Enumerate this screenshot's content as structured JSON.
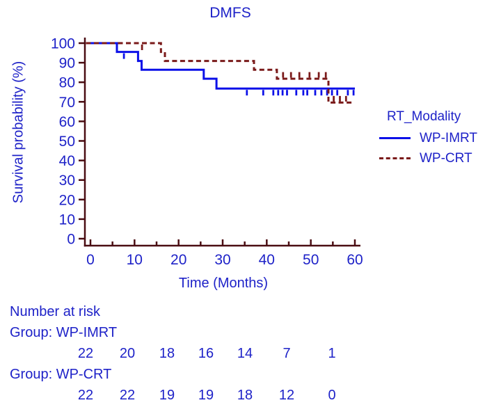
{
  "title": "DMFS",
  "legend": {
    "title": "RT_Modality",
    "items": [
      {
        "label": "WP-IMRT",
        "line": "solid",
        "color": "#0c10e8"
      },
      {
        "label": "WP-CRT",
        "line": "dashed",
        "color": "#7a1a1a"
      }
    ]
  },
  "chart_data": {
    "type": "line",
    "subtype": "kaplan-meier-step",
    "title": "DMFS",
    "xlabel": "Time (Months)",
    "ylabel": "Survival probability (%)",
    "xlim": [
      0,
      60
    ],
    "ylim": [
      0,
      100
    ],
    "xticks": [
      0,
      10,
      20,
      30,
      40,
      50,
      60
    ],
    "xticks_minor": [
      5,
      15,
      25,
      35,
      45,
      55
    ],
    "yticks": [
      0,
      10,
      20,
      30,
      40,
      50,
      60,
      70,
      80,
      90,
      100
    ],
    "grid": false,
    "legend_position": "right",
    "series": [
      {
        "name": "WP-IMRT",
        "color": "#0c10e8",
        "dash": "solid",
        "censor_dir": "down",
        "steps": [
          [
            0,
            100
          ],
          [
            6,
            100
          ],
          [
            6,
            95.5
          ],
          [
            10.8,
            95.5
          ],
          [
            10.8,
            90.9
          ],
          [
            11.6,
            90.9
          ],
          [
            11.6,
            86.4
          ],
          [
            25.7,
            86.4
          ],
          [
            25.7,
            81.8
          ],
          [
            28.6,
            81.8
          ],
          [
            28.6,
            76.8
          ],
          [
            60,
            76.8
          ]
        ],
        "censors": [
          [
            7.6,
            95.5
          ],
          [
            35.5,
            76.8
          ],
          [
            39.2,
            76.8
          ],
          [
            41.5,
            76.8
          ],
          [
            42.6,
            76.8
          ],
          [
            43.6,
            76.8
          ],
          [
            44.6,
            76.8
          ],
          [
            46.7,
            76.8
          ],
          [
            48.3,
            76.8
          ],
          [
            49.2,
            76.8
          ],
          [
            51,
            76.8
          ],
          [
            52.4,
            76.8
          ],
          [
            53.7,
            76.8
          ],
          [
            54.8,
            76.8
          ],
          [
            56,
            76.8
          ],
          [
            58.4,
            76.8
          ],
          [
            59.7,
            76.8
          ]
        ]
      },
      {
        "name": "WP-CRT",
        "color": "#7a1a1a",
        "dash": "dashed",
        "censor_dir": "up",
        "steps": [
          [
            0,
            100
          ],
          [
            16,
            100
          ],
          [
            16,
            95.5
          ],
          [
            16.9,
            95.5
          ],
          [
            16.9,
            90.9
          ],
          [
            37.1,
            90.9
          ],
          [
            37.1,
            86.4
          ],
          [
            42.3,
            86.4
          ],
          [
            42.3,
            81.8
          ],
          [
            54,
            81.8
          ],
          [
            54,
            69.6
          ],
          [
            59.6,
            69.6
          ]
        ],
        "censors": [
          [
            11.7,
            100,
            "down"
          ],
          [
            43.7,
            81.8
          ],
          [
            45.5,
            81.8
          ],
          [
            47.4,
            81.8
          ],
          [
            49.7,
            81.8
          ],
          [
            51.8,
            81.8
          ],
          [
            53.4,
            81.8
          ],
          [
            55.2,
            69.6
          ],
          [
            56.6,
            69.6
          ],
          [
            58,
            69.6
          ]
        ]
      }
    ]
  },
  "risk_table": {
    "header": "Number at risk",
    "time_points": [
      0,
      10,
      20,
      30,
      40,
      50,
      60
    ],
    "groups": [
      {
        "label": "Group: WP-IMRT",
        "counts": [
          "22",
          "20",
          "18",
          "16",
          "14",
          "7",
          "1"
        ]
      },
      {
        "label": "Group: WP-CRT",
        "counts": [
          "22",
          "22",
          "19",
          "19",
          "18",
          "12",
          "0"
        ]
      }
    ]
  },
  "colors": {
    "text_blue": "#1e22c8",
    "axis_maroon": "#4a0d12",
    "imrt_blue": "#0c10e8",
    "crt_maroon": "#7a1a1a"
  }
}
